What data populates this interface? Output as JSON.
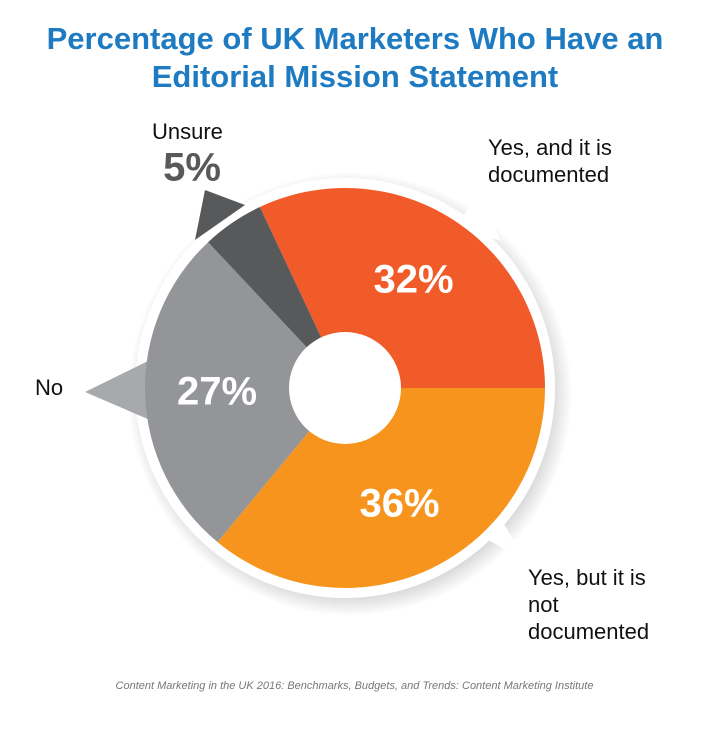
{
  "chart_data": {
    "type": "pie",
    "title": "Percentage of UK Marketers Who Have an Editorial Mission Statement",
    "categories": [
      "Yes, and it is documented",
      "Yes, but it is not documented",
      "No",
      "Unsure"
    ],
    "values": [
      32,
      36,
      27,
      5
    ],
    "value_labels": [
      "32%",
      "36%",
      "27%",
      "5%"
    ],
    "colors": [
      "#f15a29",
      "#f7941d",
      "#939598",
      "#58595b"
    ],
    "source": "Content Marketing in the UK 2016: Benchmarks, Budgets, and Trends: Content Marketing Institute"
  }
}
